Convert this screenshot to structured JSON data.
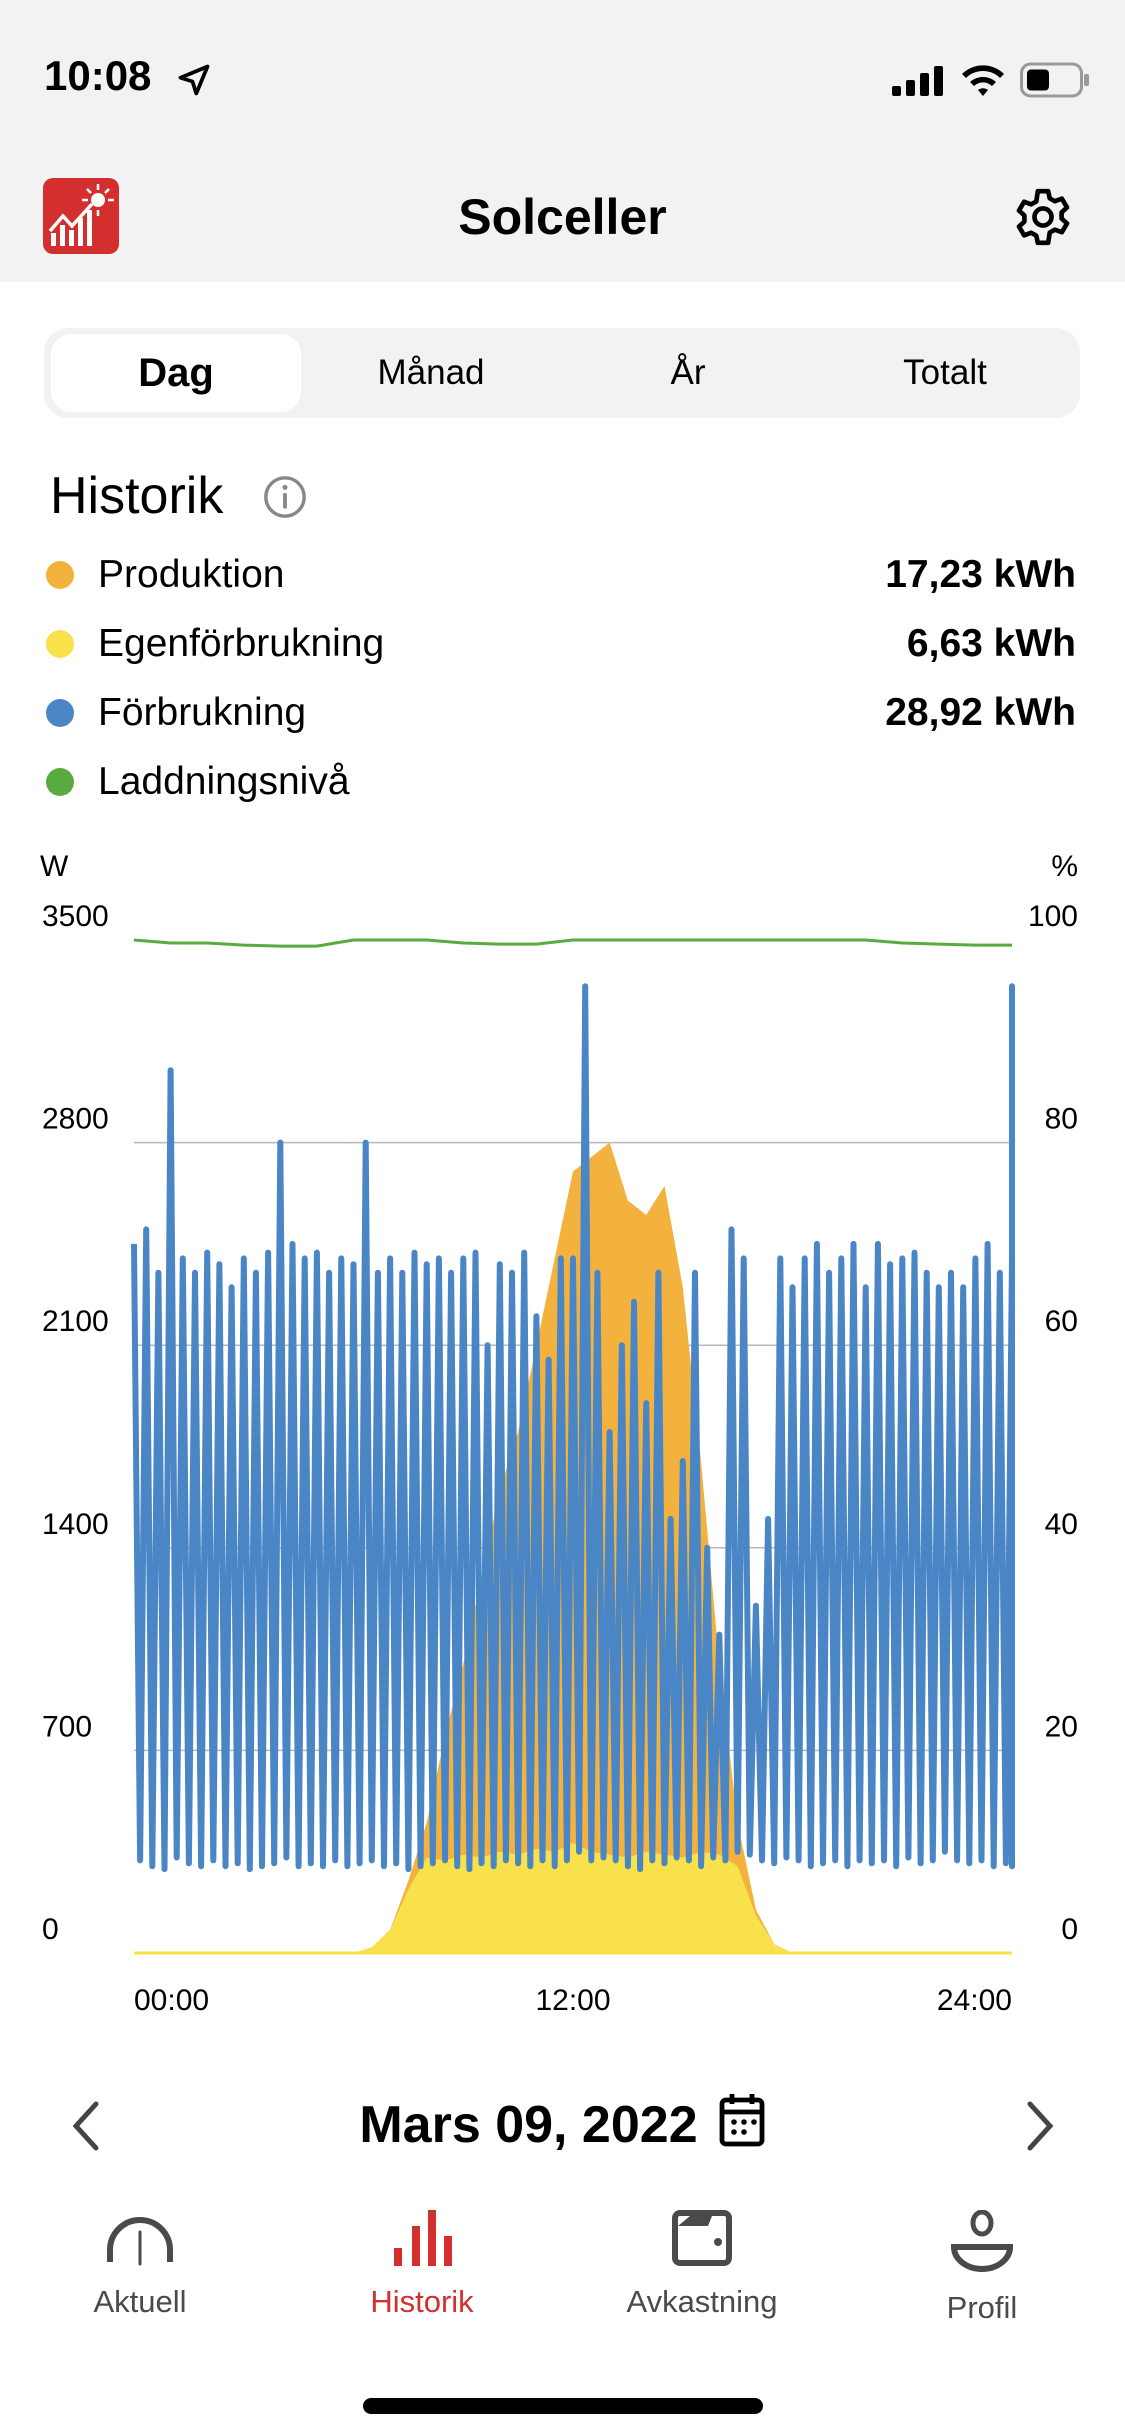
{
  "status_bar": {
    "time": "10:08"
  },
  "header": {
    "title": "Solceller"
  },
  "segments": [
    {
      "label": "Dag",
      "active": true
    },
    {
      "label": "Månad"
    },
    {
      "label": "År"
    },
    {
      "label": "Totalt"
    }
  ],
  "history": {
    "heading": "Historik",
    "legend": [
      {
        "label": "Produktion",
        "value": "17,23 kWh",
        "color": "#f3b23d"
      },
      {
        "label": "Egenförbrukning",
        "value": "6,63 kWh",
        "color": "#f9e14b"
      },
      {
        "label": "Förbrukning",
        "value": "28,92 kWh",
        "color": "#4a86c5"
      },
      {
        "label": "Laddningsnivå",
        "color": "#5aab3f"
      }
    ]
  },
  "chart_data": {
    "type": "area",
    "left_unit": "W",
    "right_unit": "%",
    "y_ticks": [
      "3500",
      "2800",
      "2100",
      "1400",
      "700",
      "0"
    ],
    "y2_ticks": [
      "100",
      "80",
      "60",
      "40",
      "20",
      "0"
    ],
    "ylim": [
      0,
      3500
    ],
    "y2lim": [
      0,
      100
    ],
    "x_ticks": [
      "00:00",
      "12:00",
      "24:00"
    ],
    "xlim_hours": [
      0,
      24
    ],
    "series": [
      {
        "name": "Produktion",
        "color": "#f3b23d",
        "step_hours": 0.5,
        "values": [
          0,
          0,
          0,
          0,
          0,
          0,
          0,
          0,
          0,
          0,
          0,
          0,
          0,
          20,
          80,
          250,
          450,
          750,
          1000,
          1300,
          1600,
          1800,
          2100,
          2400,
          2700,
          2750,
          2800,
          2600,
          2550,
          2650,
          2300,
          1700,
          1000,
          450,
          150,
          30,
          0,
          0,
          0,
          0,
          0,
          0,
          0,
          0,
          0,
          0,
          0,
          0,
          0
        ]
      },
      {
        "name": "Egenförbrukning",
        "color": "#f9e14b",
        "step_hours": 0.5,
        "values": [
          0,
          0,
          0,
          0,
          0,
          0,
          0,
          0,
          0,
          0,
          0,
          0,
          0,
          20,
          80,
          220,
          330,
          320,
          340,
          330,
          350,
          340,
          360,
          350,
          380,
          350,
          340,
          330,
          350,
          340,
          330,
          350,
          340,
          300,
          130,
          30,
          0,
          0,
          0,
          0,
          0,
          0,
          0,
          0,
          0,
          0,
          0,
          0,
          0
        ]
      },
      {
        "name": "Förbrukning",
        "color": "#4a86c5",
        "step_hours": 0.16667,
        "values": [
          2450,
          320,
          2500,
          300,
          2350,
          290,
          3050,
          330,
          2400,
          310,
          2350,
          300,
          2420,
          320,
          2380,
          300,
          2300,
          310,
          2400,
          290,
          2350,
          300,
          2420,
          310,
          2800,
          330,
          2450,
          300,
          2400,
          310,
          2420,
          300,
          2350,
          320,
          2400,
          300,
          2380,
          310,
          2800,
          320,
          2350,
          300,
          2400,
          310,
          2350,
          290,
          2420,
          300,
          2380,
          310,
          2400,
          320,
          2350,
          300,
          2400,
          290,
          2420,
          310,
          2100,
          300,
          2380,
          320,
          2350,
          310,
          2420,
          300,
          2200,
          320,
          2050,
          300,
          2400,
          320,
          2400,
          350,
          3340,
          320,
          2350,
          330,
          1800,
          320,
          2100,
          300,
          2250,
          290,
          1900,
          320,
          2350,
          310,
          1500,
          330,
          1700,
          320,
          2350,
          300,
          1400,
          330,
          1100,
          320,
          2500,
          350,
          2400,
          340,
          1200,
          320,
          1500,
          310,
          2400,
          330,
          2300,
          320,
          2400,
          300,
          2450,
          310,
          2350,
          320,
          2400,
          300,
          2450,
          320,
          2300,
          310,
          2450,
          320,
          2380,
          300,
          2400,
          330,
          2420,
          310,
          2350,
          320,
          2300,
          350,
          2350,
          320,
          2300,
          310,
          2400,
          320,
          2450,
          300,
          2350,
          310,
          2400,
          300,
          350,
          3340,
          450
        ]
      },
      {
        "name": "Laddningsnivå",
        "color": "#5aab3f",
        "axis": "right",
        "step_hours": 1,
        "values": [
          100,
          99.7,
          99.7,
          99.5,
          99.4,
          99.4,
          100,
          100,
          100,
          99.7,
          99.6,
          99.6,
          100,
          100,
          100,
          100,
          100,
          100,
          100,
          100,
          100,
          99.7,
          99.6,
          99.5,
          99.5
        ]
      }
    ]
  },
  "date_nav": {
    "date": "Mars 09, 2022"
  },
  "tabbar": [
    {
      "label": "Aktuell"
    },
    {
      "label": "Historik",
      "active": true
    },
    {
      "label": "Avkastning"
    },
    {
      "label": "Profil"
    }
  ]
}
